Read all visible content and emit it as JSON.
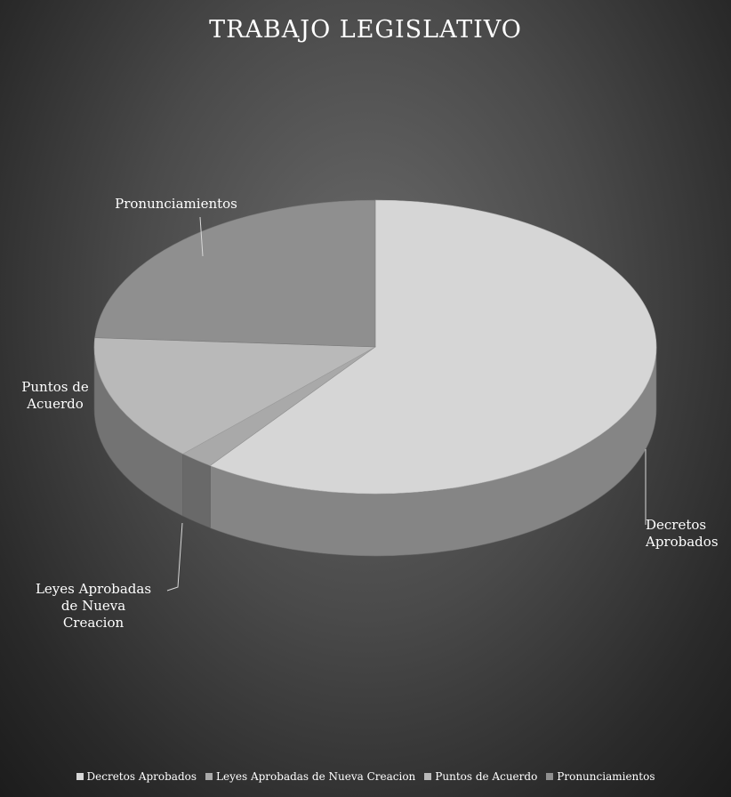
{
  "chart_data": {
    "type": "pie",
    "title": "TRABAJO LEGISLATIVO",
    "categories": [
      "Decretos Aprobados",
      "Leyes Aprobadas de Nueva Creacion",
      "Puntos de Acuerdo",
      "Pronunciamientos"
    ],
    "values": [
      60,
      2,
      14,
      24
    ],
    "data_labels": [
      [
        "Decretos",
        "Aprobados"
      ],
      [
        "Leyes Aprobadas",
        "de Nueva",
        "Creacion"
      ],
      [
        "Puntos de",
        "Acuerdo"
      ],
      [
        "Pronunciamientos"
      ]
    ],
    "colors": [
      "#d6d6d6",
      "#a9a9a9",
      "#b9b9b9",
      "#8f8f8f"
    ],
    "legend_position": "bottom",
    "style": "3d"
  }
}
